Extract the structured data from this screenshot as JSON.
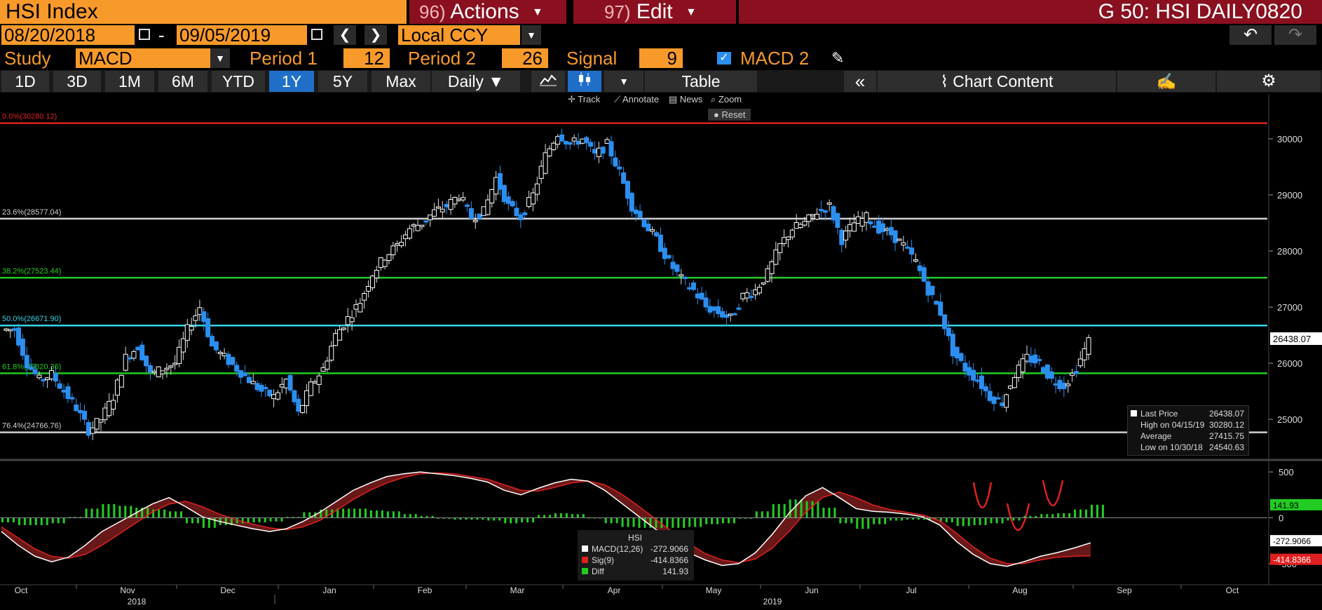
{
  "header": {
    "ticker": "HSI Index",
    "actions_num": "96)",
    "actions": "Actions",
    "edit_num": "97)",
    "edit": "Edit",
    "title": "G 50: HSI DAILY0820"
  },
  "range": {
    "start": "08/20/2018",
    "sep": "-",
    "end": "09/05/2019",
    "currency": "Local CCY"
  },
  "study": {
    "label": "Study",
    "name": "MACD",
    "period1_label": "Period 1",
    "period1": "12",
    "period2_label": "Period 2",
    "period2": "26",
    "signal_label": "Signal",
    "signal": "9",
    "macd2_label": "MACD 2"
  },
  "toolbar": {
    "periods": [
      "1D",
      "3D",
      "1M",
      "6M",
      "YTD",
      "1Y",
      "5Y",
      "Max"
    ],
    "active_period": "1Y",
    "frequency": "Daily",
    "table": "Table",
    "chart_content": "Chart Content"
  },
  "chart_tools": {
    "track": "Track",
    "annotate": "Annotate",
    "news": "News",
    "zoom": "Zoom",
    "reset": "Reset"
  },
  "colors": {
    "up": "#ffffff",
    "down": "#2b8ff0",
    "fib_0": "#e02020",
    "fib_236": "#d0d0d0",
    "fib_382": "#22cc22",
    "fib_50": "#33d6e6",
    "fib_618": "#22cc22",
    "fib_764": "#d0d0d0",
    "macd": "#ffffff",
    "signal": "#e02020",
    "diff": "#22cc22",
    "accent_orange": "#f79a2a",
    "menu_red": "#8a1020"
  },
  "chart_data": [
    {
      "type": "candlestick",
      "price_axis_ticks": [
        30000,
        29000,
        28000,
        27000,
        26000,
        25000
      ],
      "ylim": [
        24300,
        30800
      ],
      "x_months": [
        "Oct",
        "Nov",
        "Dec",
        "Jan",
        "Feb",
        "Mar",
        "Apr",
        "May",
        "Jun",
        "Jul",
        "Aug",
        "Sep",
        "Oct"
      ],
      "x_years": [
        "2018",
        "2019"
      ],
      "fib_levels": [
        {
          "label": "0.0%(30280.12)",
          "value": 30280.12
        },
        {
          "label": "23.6%(28577.04)",
          "value": 28577.04
        },
        {
          "label": "38.2%(27523.44)",
          "value": 27523.44
        },
        {
          "label": "50.0%(26671.90)",
          "value": 26671.9
        },
        {
          "label": "61.8%(25820.36)",
          "value": 25820.36
        },
        {
          "label": "76.4%(24766.76)",
          "value": 24766.76
        }
      ],
      "last_price_tag": "26438.07",
      "legend": {
        "last_price_label": "Last Price",
        "last_price": "26438.07",
        "high_label": "High on 04/15/19",
        "high": "30280.12",
        "average_label": "Average",
        "average": "27415.75",
        "low_label": "Low on 10/30/18",
        "low": "24540.63"
      },
      "weekly_closes": [
        26600,
        26000,
        25700,
        25800,
        25500,
        25200,
        24800,
        25000,
        25400,
        26100,
        26300,
        25800,
        25900,
        26000,
        26600,
        27000,
        26300,
        26100,
        25900,
        25700,
        25500,
        25400,
        25700,
        25100,
        25600,
        25900,
        26500,
        26800,
        27100,
        27600,
        27900,
        28100,
        28400,
        28500,
        28700,
        28800,
        29000,
        28600,
        28700,
        29300,
        28800,
        28600,
        29000,
        29700,
        30100,
        29900,
        30000,
        29700,
        29900,
        29400,
        28800,
        28500,
        28200,
        27800,
        27500,
        27300,
        27000,
        26900,
        26800,
        27200,
        27300,
        27600,
        28100,
        28400,
        28500,
        28700,
        28800,
        28200,
        28500,
        28600,
        28400,
        28300,
        28100,
        27800,
        27300,
        26900,
        26200,
        25900,
        25700,
        25400,
        25300,
        25800,
        26100,
        26000,
        25700,
        25600,
        25900,
        26400
      ]
    },
    {
      "type": "macd",
      "ticks": [
        500,
        0,
        -500
      ],
      "ylim": [
        -700,
        600
      ],
      "legend_title": "HSI",
      "series": [
        {
          "name": "MACD(12,26)",
          "last": "-272.9066"
        },
        {
          "name": "Sig(9)",
          "last": "-414.8366"
        },
        {
          "name": "Diff",
          "last": "141.93"
        }
      ],
      "tags": {
        "diff": "141.93",
        "macd": "-272.9066",
        "sig": "-414.8366"
      },
      "macd_values": [
        -150,
        -300,
        -420,
        -480,
        -430,
        -300,
        -150,
        -50,
        50,
        150,
        220,
        120,
        10,
        -40,
        -80,
        -120,
        -150,
        -120,
        -40,
        60,
        180,
        300,
        380,
        450,
        480,
        500,
        480,
        460,
        430,
        390,
        300,
        250,
        320,
        380,
        420,
        400,
        300,
        160,
        20,
        -120,
        -260,
        -380,
        -460,
        -520,
        -500,
        -380,
        -180,
        50,
        240,
        330,
        220,
        100,
        70,
        60,
        40,
        10,
        -80,
        -260,
        -400,
        -500,
        -530,
        -480,
        -420,
        -380,
        -330,
        -273
      ],
      "signal_values": [
        -100,
        -220,
        -340,
        -420,
        -440,
        -400,
        -300,
        -180,
        -60,
        60,
        150,
        180,
        120,
        40,
        -20,
        -70,
        -110,
        -130,
        -100,
        -30,
        80,
        200,
        300,
        380,
        440,
        480,
        490,
        480,
        450,
        420,
        360,
        300,
        290,
        330,
        380,
        400,
        360,
        260,
        130,
        -10,
        -150,
        -280,
        -390,
        -460,
        -490,
        -450,
        -330,
        -150,
        60,
        220,
        280,
        220,
        140,
        90,
        60,
        30,
        -30,
        -170,
        -320,
        -440,
        -500,
        -500,
        -460,
        -430,
        -420,
        -415
      ]
    }
  ]
}
